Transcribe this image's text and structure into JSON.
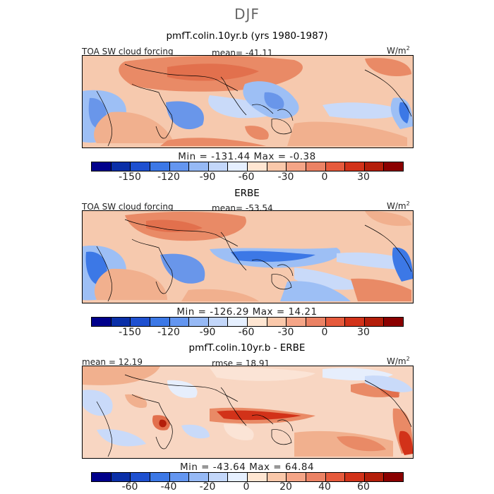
{
  "season": "DJF",
  "panels": [
    {
      "title": "pmfT.colin.10yr.b (yrs 1980-1987)",
      "left_label": "TOA SW cloud forcing",
      "center_label": "mean= -41.11",
      "units": "W/m",
      "units_exp": "2",
      "minmax": "Min = -131.44 Max =  -0.38",
      "ticks": [
        "-150",
        "-120",
        "-90",
        "-60",
        "-30",
        "0",
        "30"
      ]
    },
    {
      "title": "ERBE",
      "left_label": "TOA SW cloud forcing",
      "center_label": "mean= -53.54",
      "units": "W/m",
      "units_exp": "2",
      "minmax": "Min = -126.29 Max =  14.21",
      "ticks": [
        "-150",
        "-120",
        "-90",
        "-60",
        "-30",
        "0",
        "30"
      ]
    },
    {
      "title": "pmfT.colin.10yr.b - ERBE",
      "left_label": "mean =  12.19",
      "center_label": "rmse =  18.91",
      "units": "W/m",
      "units_exp": "2",
      "minmax": "Min = -43.64 Max =  64.84",
      "ticks": [
        "-60",
        "-40",
        "-20",
        "0",
        "20",
        "40",
        "60"
      ]
    }
  ],
  "colors": {
    "colorbar": [
      "#00008b",
      "#0a2fa8",
      "#1e50d0",
      "#3c78e6",
      "#6496f0",
      "#96b9f5",
      "#c3d7fa",
      "#e6f0ff",
      "#ffe6d2",
      "#fac8aa",
      "#f5a587",
      "#eb8264",
      "#e65a3c",
      "#d23219",
      "#b41e0a",
      "#8b0000"
    ]
  }
}
